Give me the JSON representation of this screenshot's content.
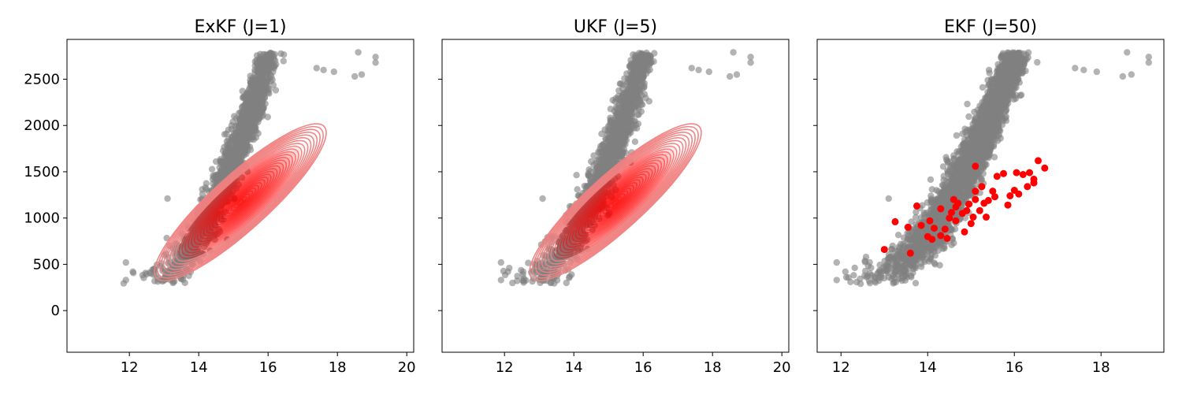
{
  "chart_data": [
    {
      "type": "scatter",
      "title": "ExKF (J=1)",
      "xlabel": "",
      "ylabel": "",
      "xlim": [
        10.2,
        20.2
      ],
      "ylim": [
        -450,
        2930
      ],
      "xticks": [
        12,
        14,
        16,
        18,
        20
      ],
      "yticks": [
        0,
        500,
        1000,
        1500,
        2000,
        2500
      ],
      "show_yticklabels": true,
      "grid": false,
      "overlay": {
        "type": "gaussian-contours",
        "color": "#f08080",
        "fill_color": "#ff0000",
        "center": [
          15.2,
          1170
        ],
        "x_extent": [
          12.6,
          17.8
        ],
        "y_extent": [
          290,
          2050
        ]
      },
      "series": [
        {
          "kind": "cloud",
          "color": "#808080",
          "opacity": 0.6,
          "x_range": [
            11.8,
            19.1
          ],
          "y_range": [
            330,
            2790
          ],
          "count": 1500,
          "outliers": [
            [
              18.6,
              2790
            ],
            [
              19.1,
              2740
            ],
            [
              19.1,
              2680
            ],
            [
              18.7,
              2550
            ],
            [
              18.5,
              2530
            ],
            [
              17.9,
              2580
            ],
            [
              17.6,
              2600
            ],
            [
              17.4,
              2620
            ],
            [
              11.9,
              520
            ],
            [
              12.1,
              420
            ],
            [
              11.9,
              330
            ],
            [
              13.1,
              1210
            ],
            [
              14.1,
              1310
            ],
            [
              14.5,
              1610
            ],
            [
              14.8,
              1910
            ],
            [
              15.1,
              1930
            ]
          ]
        }
      ]
    },
    {
      "type": "scatter",
      "title": "UKF (J=5)",
      "xlabel": "",
      "ylabel": "",
      "xlim": [
        10.2,
        20.2
      ],
      "ylim": [
        -450,
        2930
      ],
      "xticks": [
        12,
        14,
        16,
        18,
        20
      ],
      "yticks": [
        0,
        500,
        1000,
        1500,
        2000,
        2500
      ],
      "show_yticklabels": false,
      "grid": false,
      "overlay": {
        "type": "gaussian-contours",
        "color": "#f08080",
        "fill_color": "#ff0000",
        "center": [
          15.2,
          1170
        ],
        "x_extent": [
          12.6,
          17.8
        ],
        "y_extent": [
          290,
          2050
        ]
      },
      "series": [
        {
          "kind": "cloud",
          "color": "#808080",
          "opacity": 0.6,
          "x_range": [
            11.8,
            19.1
          ],
          "y_range": [
            330,
            2790
          ],
          "count": 1500,
          "outliers": [
            [
              18.6,
              2790
            ],
            [
              19.1,
              2740
            ],
            [
              19.1,
              2680
            ],
            [
              18.7,
              2550
            ],
            [
              18.5,
              2530
            ],
            [
              17.9,
              2580
            ],
            [
              17.6,
              2600
            ],
            [
              17.4,
              2620
            ],
            [
              11.9,
              520
            ],
            [
              12.1,
              420
            ],
            [
              11.9,
              330
            ],
            [
              13.1,
              1210
            ],
            [
              14.1,
              1310
            ],
            [
              14.5,
              1610
            ],
            [
              14.8,
              1910
            ],
            [
              15.1,
              1930
            ]
          ]
        }
      ]
    },
    {
      "type": "scatter",
      "title": "EKF (J=50)",
      "xlabel": "",
      "ylabel": "",
      "xlim": [
        11.45,
        19.45
      ],
      "ylim": [
        -450,
        2930
      ],
      "xticks": [
        12,
        14,
        16,
        18
      ],
      "yticks": [
        0,
        500,
        1000,
        1500,
        2000,
        2500
      ],
      "show_yticklabels": false,
      "grid": false,
      "series": [
        {
          "kind": "cloud",
          "color": "#808080",
          "opacity": 0.6,
          "x_range": [
            11.8,
            19.1
          ],
          "y_range": [
            330,
            2790
          ],
          "count": 2600,
          "outliers": [
            [
              18.6,
              2790
            ],
            [
              19.1,
              2740
            ],
            [
              19.1,
              2680
            ],
            [
              18.7,
              2550
            ],
            [
              18.5,
              2530
            ],
            [
              17.9,
              2580
            ],
            [
              17.6,
              2600
            ],
            [
              17.4,
              2620
            ],
            [
              11.9,
              520
            ],
            [
              12.1,
              420
            ],
            [
              11.9,
              330
            ],
            [
              13.1,
              1210
            ],
            [
              14.1,
              1310
            ],
            [
              14.5,
              1610
            ],
            [
              14.8,
              1910
            ],
            [
              15.1,
              1930
            ]
          ]
        },
        {
          "kind": "points",
          "color": "#ff0000",
          "points": [
            [
              13.0,
              660
            ],
            [
              13.25,
              960
            ],
            [
              13.55,
              900
            ],
            [
              13.6,
              620
            ],
            [
              13.75,
              1130
            ],
            [
              13.85,
              920
            ],
            [
              14.0,
              800
            ],
            [
              14.05,
              970
            ],
            [
              14.1,
              770
            ],
            [
              14.15,
              890
            ],
            [
              14.3,
              1100
            ],
            [
              14.3,
              810
            ],
            [
              14.4,
              880
            ],
            [
              14.45,
              780
            ],
            [
              14.5,
              1000
            ],
            [
              14.55,
              1060
            ],
            [
              14.6,
              1200
            ],
            [
              14.65,
              970
            ],
            [
              14.65,
              1120
            ],
            [
              14.7,
              1160
            ],
            [
              14.8,
              1050
            ],
            [
              14.85,
              850
            ],
            [
              14.9,
              1080
            ],
            [
              14.95,
              1150
            ],
            [
              15.0,
              940
            ],
            [
              15.05,
              1010
            ],
            [
              15.1,
              1200
            ],
            [
              15.1,
              1290
            ],
            [
              15.1,
              1560
            ],
            [
              15.2,
              1080
            ],
            [
              15.25,
              1340
            ],
            [
              15.3,
              1160
            ],
            [
              15.35,
              1010
            ],
            [
              15.4,
              1190
            ],
            [
              15.5,
              1290
            ],
            [
              15.55,
              1230
            ],
            [
              15.6,
              1450
            ],
            [
              15.75,
              1480
            ],
            [
              15.85,
              1140
            ],
            [
              15.9,
              1240
            ],
            [
              16.0,
              1300
            ],
            [
              16.05,
              1490
            ],
            [
              16.1,
              1260
            ],
            [
              16.2,
              1470
            ],
            [
              16.3,
              1340
            ],
            [
              16.35,
              1490
            ],
            [
              16.45,
              1420
            ],
            [
              16.45,
              1380
            ],
            [
              16.55,
              1620
            ],
            [
              16.7,
              1540
            ]
          ]
        }
      ]
    }
  ]
}
